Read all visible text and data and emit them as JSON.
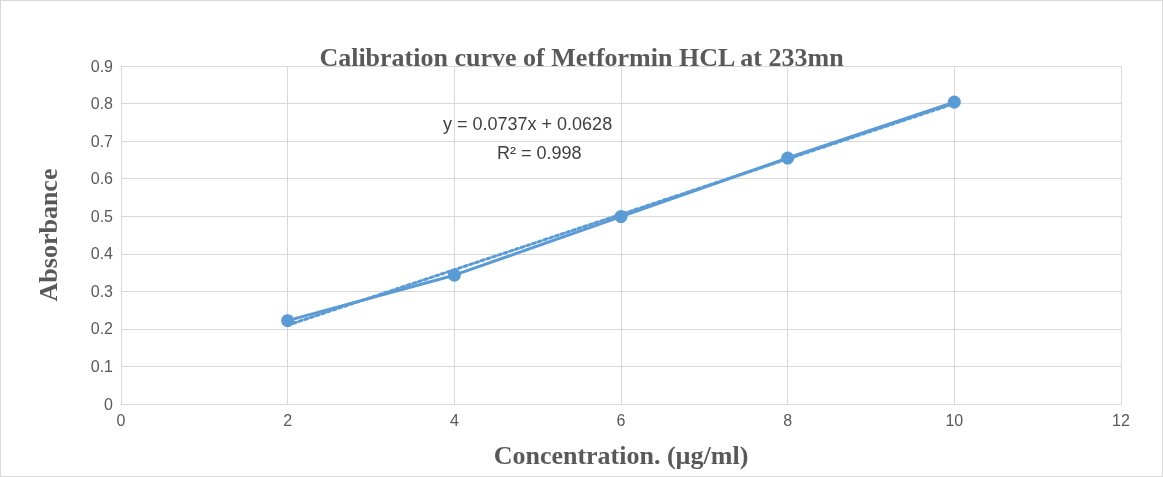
{
  "chart_data": {
    "type": "line",
    "title": "Calibration curve of Metformin HCL at 233mn",
    "xlabel": "Concentration. (µg/ml)",
    "ylabel": "Absorbance",
    "xlim": [
      0,
      12
    ],
    "xticks": [
      0,
      2,
      4,
      6,
      8,
      10,
      12
    ],
    "ylim": [
      0,
      0.9
    ],
    "yticks": [
      0,
      0.1,
      0.2,
      0.3,
      0.4,
      0.5,
      0.6,
      0.7,
      0.8,
      0.9
    ],
    "grid": true,
    "series": [
      {
        "x": [
          2,
          4,
          6,
          8,
          10
        ],
        "values": [
          0.222,
          0.343,
          0.499,
          0.655,
          0.804
        ],
        "color": "#5b9bd5",
        "marker": "circle",
        "line_style": "solid"
      },
      {
        "x": [
          2,
          10
        ],
        "values": [
          0.21,
          0.8
        ],
        "color": "#5b9bd5",
        "marker": "none",
        "line_style": "dotted"
      }
    ],
    "annotations": [
      "y = 0.0737x + 0.0628",
      "R² = 0.998"
    ]
  }
}
